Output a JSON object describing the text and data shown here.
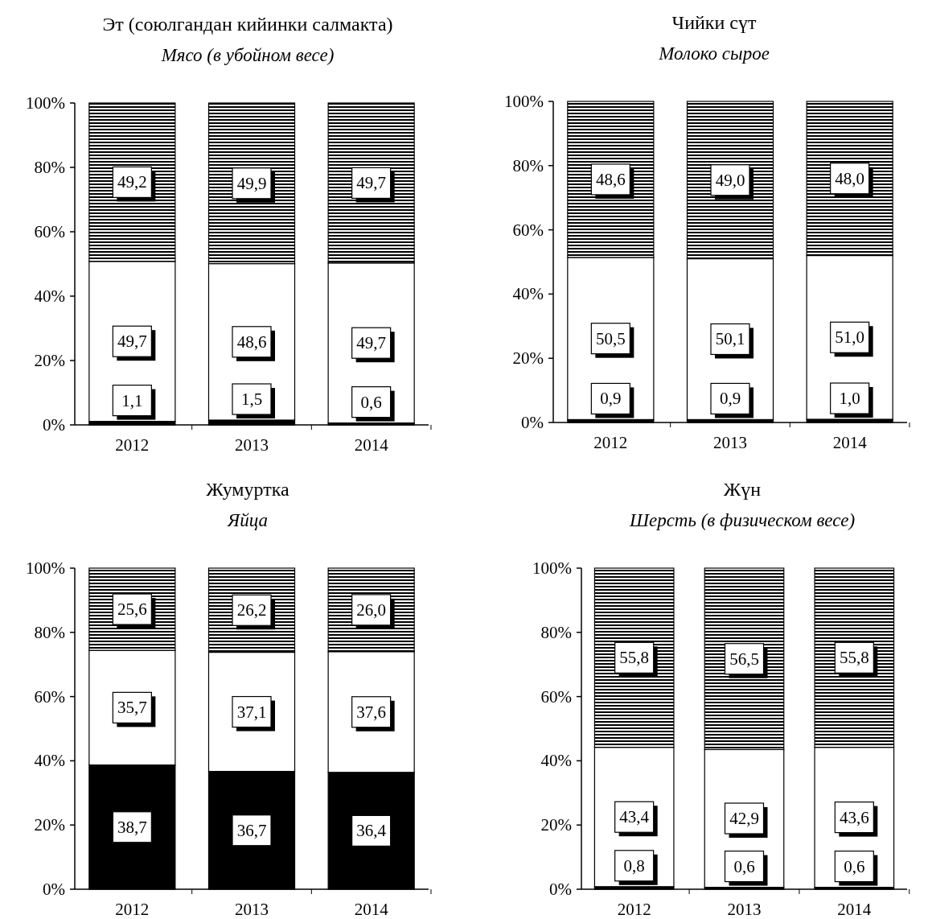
{
  "chart_data": [
    {
      "type": "bar",
      "title": "Эт (союлгандан кийинки салмакта)",
      "subtitle": "Мясо (в убойном весе)",
      "categories": [
        "2012",
        "2013",
        "2014"
      ],
      "stacked": true,
      "ylim": [
        0,
        100
      ],
      "yticks": [
        {
          "value": 0,
          "label": "0%"
        },
        {
          "value": 20,
          "label": "20%"
        },
        {
          "value": 40,
          "label": "40%"
        },
        {
          "value": 60,
          "label": "60%"
        },
        {
          "value": 80,
          "label": "80%"
        },
        {
          "value": 100,
          "label": "100%"
        }
      ],
      "series": [
        {
          "color": "#000000",
          "values": [
            1.1,
            1.5,
            0.6
          ],
          "value_labels": [
            "1,1",
            "1,5",
            "0,6"
          ]
        },
        {
          "color": "#ffffff",
          "values": [
            49.7,
            48.6,
            49.7
          ],
          "value_labels": [
            "49,7",
            "48,6",
            "49,7"
          ]
        },
        {
          "color": "#000000",
          "values": [
            49.2,
            49.9,
            49.7
          ],
          "value_labels": [
            "49,2",
            "49,9",
            "49,7"
          ]
        }
      ]
    },
    {
      "type": "bar",
      "title": "Чийки сүт",
      "subtitle": "Молоко сырое",
      "categories": [
        "2012",
        "2013",
        "2014"
      ],
      "stacked": true,
      "ylim": [
        0,
        100
      ],
      "yticks": [
        {
          "value": 0,
          "label": "0%"
        },
        {
          "value": 20,
          "label": "20%"
        },
        {
          "value": 40,
          "label": "40%"
        },
        {
          "value": 60,
          "label": "60%"
        },
        {
          "value": 80,
          "label": "80%"
        },
        {
          "value": 100,
          "label": "100%"
        }
      ],
      "series": [
        {
          "color": "#000000",
          "values": [
            0.9,
            0.9,
            1.0
          ],
          "value_labels": [
            "0,9",
            "0,9",
            "1,0"
          ]
        },
        {
          "color": "#ffffff",
          "values": [
            50.5,
            50.1,
            51.0
          ],
          "value_labels": [
            "50,5",
            "50,1",
            "51,0"
          ]
        },
        {
          "color": "#000000",
          "values": [
            48.6,
            49.0,
            48.0
          ],
          "value_labels": [
            "48,6",
            "49,0",
            "48,0"
          ]
        }
      ]
    },
    {
      "type": "bar",
      "title": "Жумуртка",
      "subtitle": "Яйца",
      "categories": [
        "2012",
        "2013",
        "2014"
      ],
      "stacked": true,
      "ylim": [
        0,
        100
      ],
      "yticks": [
        {
          "value": 0,
          "label": "0%"
        },
        {
          "value": 20,
          "label": "20%"
        },
        {
          "value": 40,
          "label": "40%"
        },
        {
          "value": 60,
          "label": "60%"
        },
        {
          "value": 80,
          "label": "80%"
        },
        {
          "value": 100,
          "label": "100%"
        }
      ],
      "series": [
        {
          "color": "#000000",
          "values": [
            38.7,
            36.7,
            36.4
          ],
          "value_labels": [
            "38,7",
            "36,7",
            "36,4"
          ]
        },
        {
          "color": "#ffffff",
          "values": [
            35.7,
            37.1,
            37.6
          ],
          "value_labels": [
            "35,7",
            "37,1",
            "37,6"
          ]
        },
        {
          "color": "#000000",
          "values": [
            25.6,
            26.2,
            26.0
          ],
          "value_labels": [
            "25,6",
            "26,2",
            "26,0"
          ]
        }
      ]
    },
    {
      "type": "bar",
      "title": "Жүн",
      "subtitle": "Шерсть (в физическом весе)",
      "categories": [
        "2012",
        "2013",
        "2014"
      ],
      "stacked": true,
      "ylim": [
        0,
        100
      ],
      "yticks": [
        {
          "value": 0,
          "label": "0%"
        },
        {
          "value": 20,
          "label": "20%"
        },
        {
          "value": 40,
          "label": "40%"
        },
        {
          "value": 60,
          "label": "60%"
        },
        {
          "value": 80,
          "label": "80%"
        },
        {
          "value": 100,
          "label": "100%"
        }
      ],
      "series": [
        {
          "color": "#000000",
          "values": [
            0.8,
            0.6,
            0.6
          ],
          "value_labels": [
            "0,8",
            "0,6",
            "0,6"
          ]
        },
        {
          "color": "#ffffff",
          "values": [
            43.4,
            42.9,
            43.6
          ],
          "value_labels": [
            "43,4",
            "42,9",
            "43,6"
          ]
        },
        {
          "color": "#000000",
          "values": [
            55.8,
            56.5,
            55.8
          ],
          "value_labels": [
            "55,8",
            "56,5",
            "55,8"
          ]
        }
      ]
    }
  ]
}
